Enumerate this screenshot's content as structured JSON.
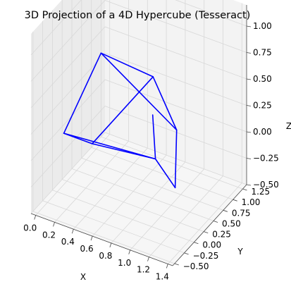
{
  "chart_data": {
    "type": "3d-wireframe",
    "title": "3D Projection of a 4D Hypercube (Tesseract)",
    "xlabel": "X",
    "ylabel": "Y",
    "zlabel": "Z",
    "x_ticks": [
      "0.0",
      "0.2",
      "0.4",
      "0.6",
      "0.8",
      "1.0",
      "1.2",
      "1.4"
    ],
    "y_ticks": [
      "−0.50",
      "−0.25",
      "0.00",
      "0.25",
      "0.50",
      "0.75",
      "1.00",
      "1.25"
    ],
    "z_ticks": [
      "−0.50",
      "−0.25",
      "0.00",
      "0.25",
      "0.50",
      "0.75",
      "1.00"
    ],
    "xlim": [
      -0.05,
      1.45
    ],
    "ylim": [
      -0.55,
      1.35
    ],
    "zlim": [
      -0.5,
      1.2
    ],
    "grid": true,
    "line_color": "#0000ff",
    "pane_color": "#f2f2f2",
    "grid_color": "#d8d8d8",
    "vertices": [
      [
        0.3,
        0.4,
        0.75
      ],
      [
        0.83,
        0.45,
        0.68
      ],
      [
        1.15,
        0.28,
        0.35
      ],
      [
        0.95,
        0.15,
        0.48
      ],
      [
        0.05,
        0.05,
        0.05
      ],
      [
        0.35,
        0.05,
        0.05
      ],
      [
        1.0,
        0.1,
        0.1
      ],
      [
        1.25,
        0.0,
        -0.05
      ]
    ],
    "edges": [
      [
        0,
        1
      ],
      [
        1,
        2
      ],
      [
        0,
        2
      ],
      [
        0,
        4
      ],
      [
        1,
        5
      ],
      [
        3,
        6
      ],
      [
        2,
        7
      ],
      [
        4,
        5
      ],
      [
        5,
        6
      ],
      [
        4,
        6
      ],
      [
        6,
        7
      ]
    ]
  }
}
